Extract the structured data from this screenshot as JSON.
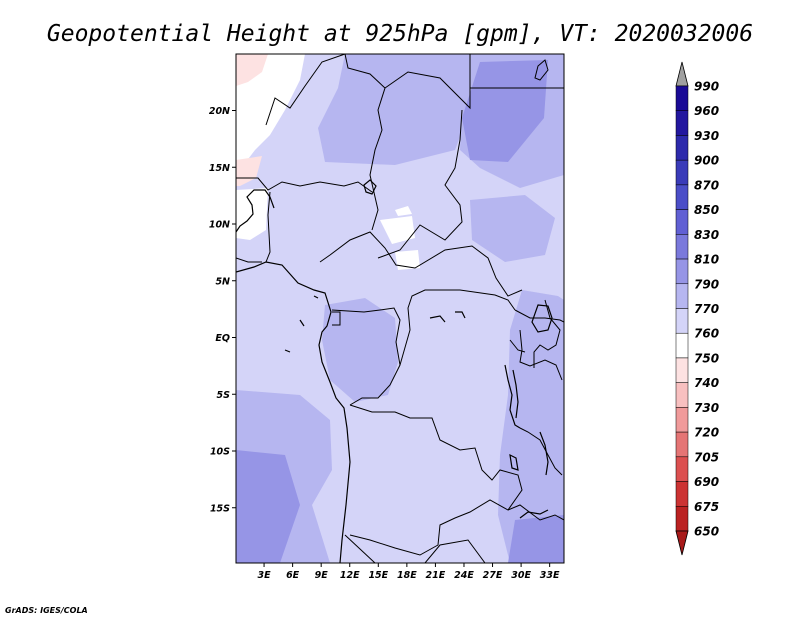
{
  "title": "Geopotential Height at 925hPa [gpm], VT: 2020032006",
  "credit": "GrADS: IGES/COLA",
  "map": {
    "lat_labels": [
      "20N",
      "15N",
      "10N",
      "5N",
      "EQ",
      "5S",
      "10S",
      "15S"
    ],
    "lon_labels": [
      "3E",
      "6E",
      "9E",
      "12E",
      "15E",
      "18E",
      "21E",
      "24E",
      "27E",
      "30E",
      "33E"
    ]
  },
  "colorbar": {
    "levels": [
      "990",
      "960",
      "930",
      "900",
      "870",
      "850",
      "830",
      "810",
      "790",
      "770",
      "760",
      "750",
      "740",
      "730",
      "720",
      "705",
      "690",
      "675",
      "650"
    ],
    "colors": [
      "#1a0a96",
      "#23179f",
      "#2d2aac",
      "#3a3bb9",
      "#4b4ec8",
      "#6160d4",
      "#7a79dc",
      "#9695e6",
      "#b6b6f0",
      "#d4d4f8",
      "#ffffff",
      "#fde2e2",
      "#f8c0c0",
      "#f09a9a",
      "#e57575",
      "#dc5050",
      "#cc3333",
      "#bb2222",
      "#a81a1a"
    ]
  },
  "chart_data": {
    "type": "heatmap",
    "title": "Geopotential Height at 925hPa [gpm], VT: 2020032006",
    "variable": "Geopotential Height",
    "level": "925hPa",
    "units": "gpm",
    "valid_time": "2020032006",
    "x_ticks": [
      "3E",
      "6E",
      "9E",
      "12E",
      "15E",
      "18E",
      "21E",
      "24E",
      "27E",
      "30E",
      "33E"
    ],
    "y_ticks": [
      "20N",
      "15N",
      "10N",
      "5N",
      "EQ",
      "5S",
      "10S",
      "15S"
    ],
    "lon_range": [
      0,
      34
    ],
    "lat_range": [
      -20,
      25
    ],
    "color_levels": [
      990,
      960,
      930,
      900,
      870,
      850,
      830,
      810,
      790,
      770,
      760,
      750,
      740,
      730,
      720,
      705,
      690,
      675,
      650
    ]
  }
}
